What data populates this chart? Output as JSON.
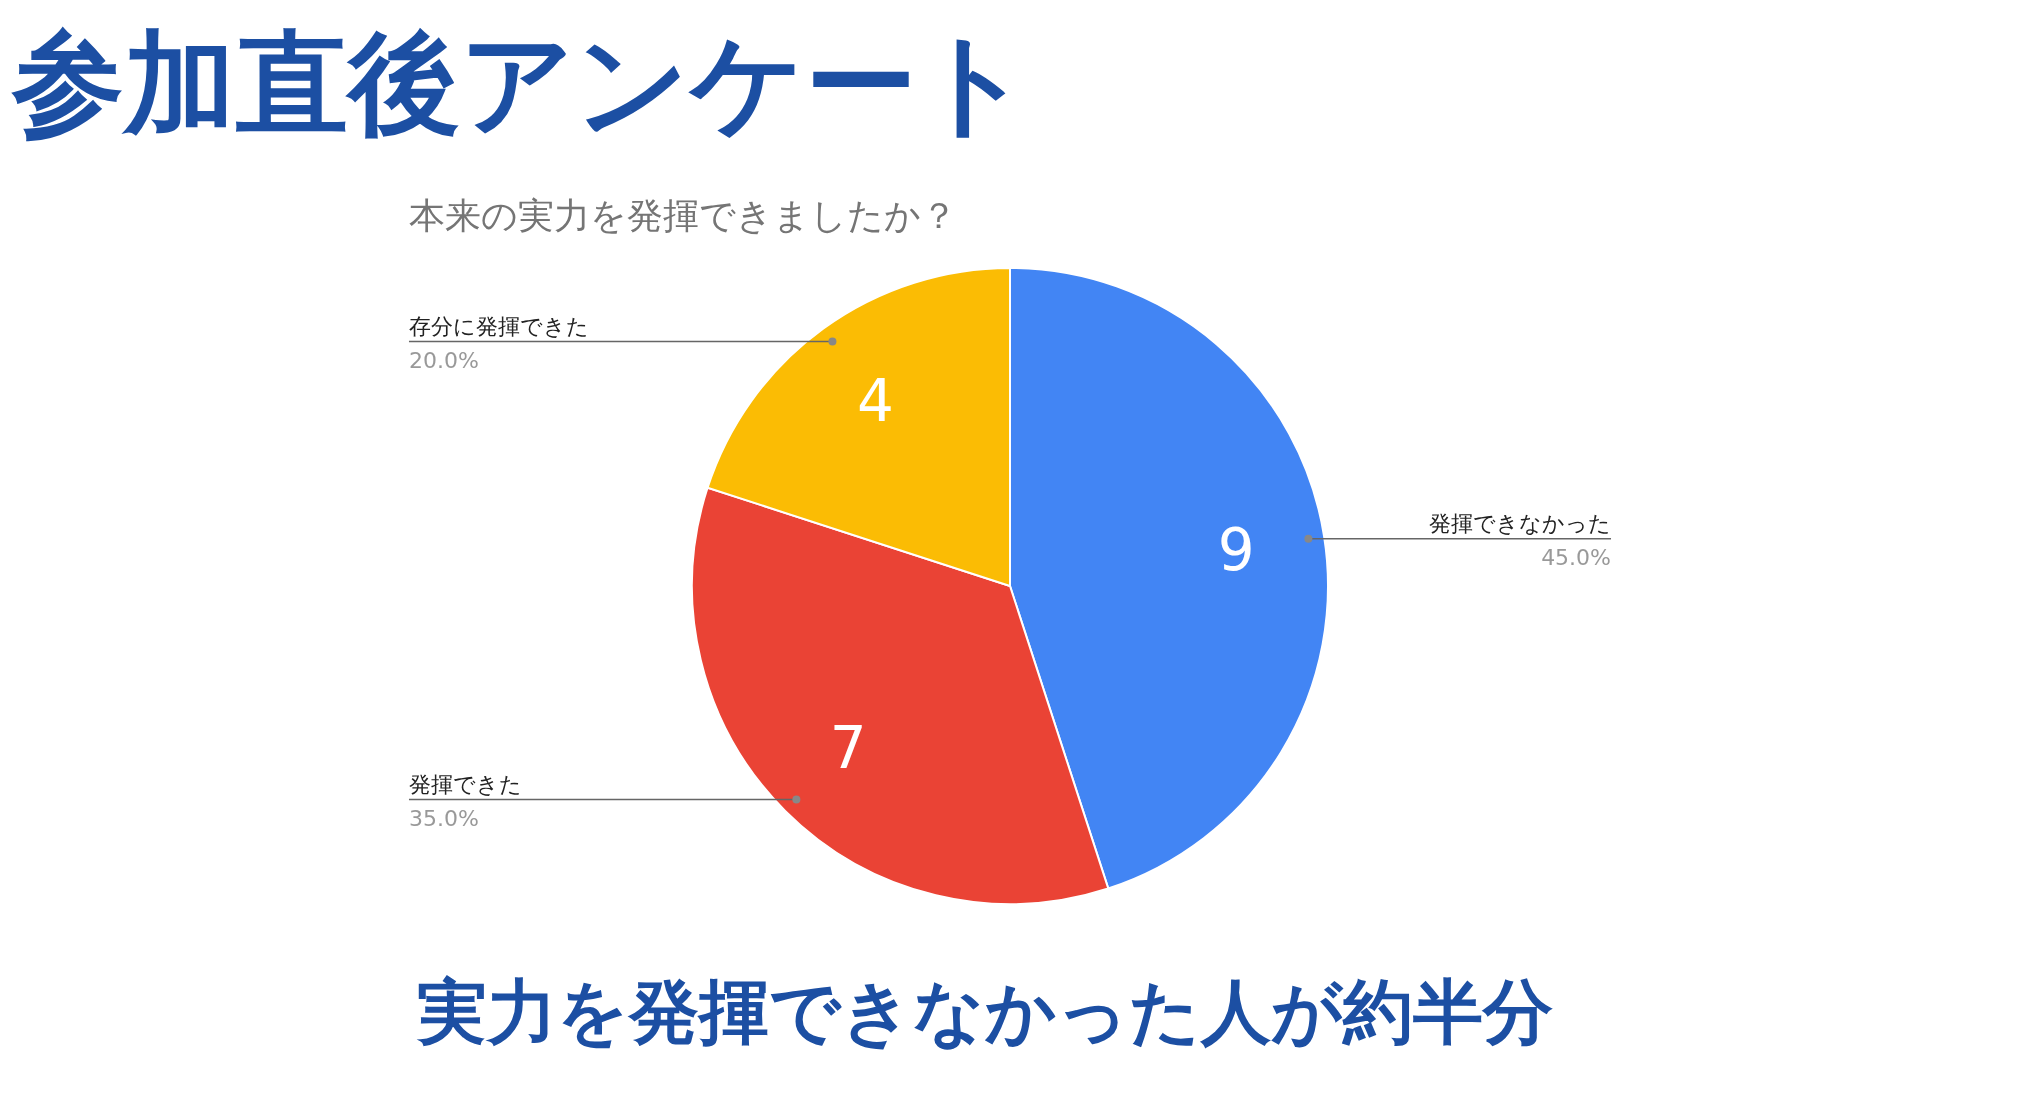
{
  "chart_data": {
    "type": "pie",
    "title": "参加直後アンケート",
    "subtitle": "本来の実力を発揮できましたか？",
    "categories": [
      "発揮できなかった",
      "発揮できた",
      "存分に発揮できた"
    ],
    "values": [
      45,
      35,
      20
    ],
    "colors": [
      "#4285f4",
      "#ea4335",
      "#fbbc04"
    ],
    "value_labels": [
      "45.0%",
      "35.0%",
      "20.0%"
    ],
    "annotations": [
      {
        "text": "9",
        "x": "発揮できなかった"
      },
      {
        "text": "7",
        "x": "発揮できた"
      },
      {
        "text": "4",
        "x": "存分に発揮できた"
      },
      "実力を発揮できなかった人が約半分"
    ]
  }
}
